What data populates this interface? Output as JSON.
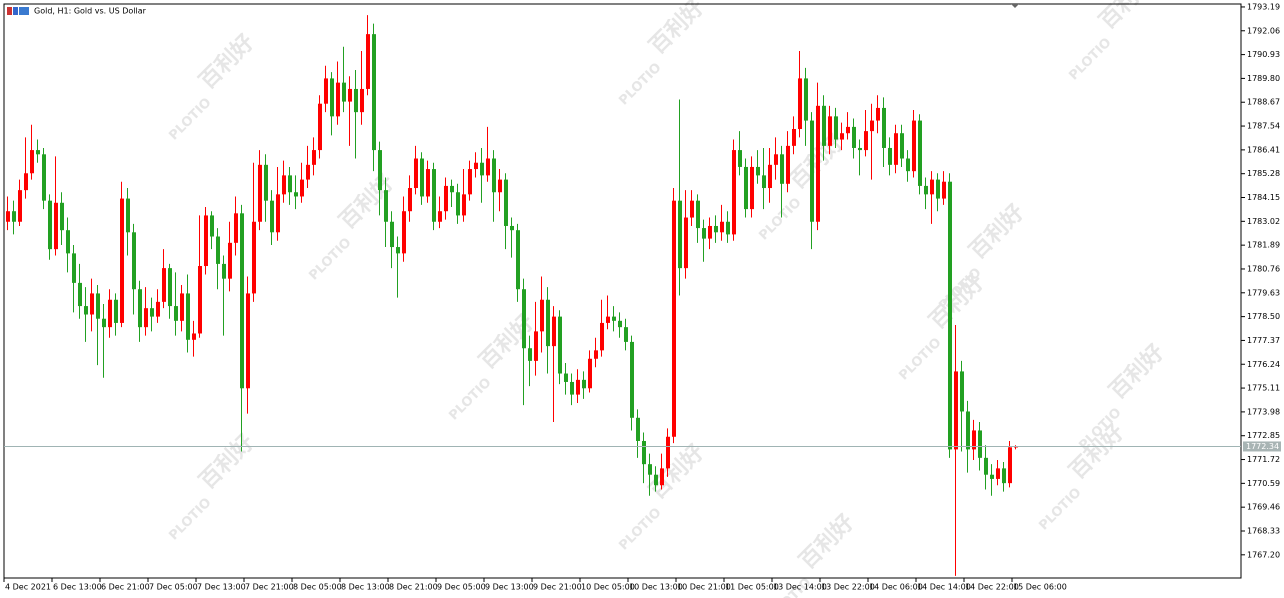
{
  "chart_data": {
    "type": "candlestick",
    "title": "Gold, H1:  Gold vs. US Dollar",
    "watermark": [
      "PLOTIO",
      "百利好"
    ],
    "up_color": "#ff0000",
    "down_color": "#22a022",
    "bid_line_color": "#a0b4b4",
    "grid": false,
    "ylim": [
      1766.1,
      1793.33
    ],
    "yticks": [
      1793.19,
      1792.06,
      1790.93,
      {
        "value": 1789.8,
        "label": "1789.80"
      },
      1788.67,
      1787.54,
      1786.41,
      1785.28,
      1784.15,
      1783.02,
      1781.89,
      1780.76,
      1779.63,
      {
        "value": 1778.5,
        "label": "1778.50"
      },
      1777.37,
      1776.24,
      1775.11,
      1773.98,
      1772.85,
      1771.72,
      1770.59,
      1769.46,
      1768.33,
      {
        "value": 1767.2,
        "label": "1767.20"
      }
    ],
    "categories": [
      "4 Dec 2021",
      null,
      null,
      null,
      null,
      null,
      null,
      null,
      "6 Dec 13:00",
      null,
      null,
      null,
      null,
      null,
      null,
      null,
      "6 Dec 21:00",
      null,
      null,
      null,
      null,
      null,
      null,
      null,
      "7 Dec 05:00",
      null,
      null,
      null,
      null,
      null,
      null,
      null,
      "7 Dec 13:00",
      null,
      null,
      null,
      null,
      null,
      null,
      null,
      "7 Dec 21:00",
      null,
      null,
      null,
      null,
      null,
      null,
      null,
      "8 Dec 05:00",
      null,
      null,
      null,
      null,
      null,
      null,
      null,
      "8 Dec 13:00",
      null,
      null,
      null,
      null,
      null,
      null,
      null,
      "8 Dec 21:00",
      null,
      null,
      null,
      null,
      null,
      null,
      null,
      "9 Dec 05:00",
      null,
      null,
      null,
      null,
      null,
      null,
      null,
      "9 Dec 13:00",
      null,
      null,
      null,
      null,
      null,
      null,
      null,
      "9 Dec 21:00",
      null,
      null,
      null,
      null,
      null,
      null,
      null,
      "10 Dec 05:00",
      null,
      null,
      null,
      null,
      null,
      null,
      null,
      "10 Dec 13:00",
      null,
      null,
      null,
      null,
      null,
      null,
      null,
      "10 Dec 21:00",
      null,
      null,
      null,
      null,
      null,
      null,
      null,
      "11 Dec 05:00",
      null,
      null,
      null,
      null,
      null,
      null,
      null,
      "13 Dec 14:00",
      null,
      null,
      null,
      null,
      null,
      null,
      null,
      "13 Dec 22:00",
      null,
      null,
      null,
      null,
      null,
      null,
      null,
      "14 Dec 06:00",
      null,
      null,
      null,
      null,
      null,
      null,
      null,
      "14 Dec 14:00",
      null,
      null,
      null,
      null,
      null,
      null,
      null,
      "14 Dec 22:00",
      null,
      null,
      null,
      null,
      null,
      null,
      null,
      "15 Dec 06:00"
    ],
    "open": [
      1783.0,
      1783.5,
      1783.0,
      1784.5,
      1785.3,
      1786.4,
      1786.2,
      1784.0,
      1781.7,
      1783.9,
      1782.6,
      1781.5,
      1780.1,
      1779.0,
      1778.6,
      1779.6,
      1778.4,
      1778.0,
      1779.3,
      1778.2,
      1784.1,
      1782.5,
      1779.8,
      1778.0,
      1778.9,
      1778.5,
      1779.2,
      1780.8,
      1779.0,
      1778.3,
      1779.6,
      1777.4,
      1777.7,
      1780.9,
      1783.3,
      1782.3,
      1781.0,
      1780.3,
      1782.0,
      1783.4,
      1775.1,
      1779.6,
      1783.0,
      1785.7,
      1784.0,
      1782.5,
      1784.3,
      1785.2,
      1784.4,
      1784.2,
      1785.0,
      1785.7,
      1786.4,
      1788.6,
      1789.8,
      1788.0,
      1789.6,
      1788.7,
      1789.3,
      1788.2,
      1789.3,
      1791.9,
      1786.4,
      1784.5,
      1783.0,
      1781.8,
      1781.5,
      1783.5,
      1784.6,
      1786.0,
      1784.2,
      1785.5,
      1783.0,
      1783.5,
      1784.7,
      1784.4,
      1783.3,
      1784.3,
      1785.5,
      1785.8,
      1785.2,
      1786.0,
      1784.4,
      1785.0,
      1782.8,
      1782.6,
      1779.8,
      1777.0,
      1776.4,
      1777.8,
      1779.3,
      1777.1,
      1778.5,
      1775.8,
      1775.4,
      1774.8,
      1775.5,
      1775.1,
      1776.5,
      1776.9,
      1778.2,
      1778.5,
      1778.3,
      1778.0,
      1777.3,
      1773.7,
      1772.6,
      1771.5,
      1771.0,
      1770.5,
      1771.3,
      1772.8,
      1784.0,
      1780.8,
      1783.2,
      1784.0,
      1782.7,
      1782.2,
      1782.8,
      1782.5,
      1783.0,
      1782.4,
      1786.4,
      1785.6,
      1783.6,
      1785.6,
      1785.2,
      1784.6,
      1785.7,
      1786.2,
      1784.8,
      1786.6,
      1787.4,
      1789.8,
      1787.8,
      1783.0,
      1788.5,
      1786.6,
      1788.0,
      1786.9,
      1787.2,
      1787.5,
      1786.5,
      1786.4,
      1787.3,
      1787.8,
      1788.4,
      1786.5,
      1785.7,
      1787.2,
      1786.0,
      1785.4,
      1787.8,
      1784.7,
      1784.3,
      1785.0,
      1784.1,
      1784.9,
      1772.2,
      1775.9,
      1774.0,
      1772.2,
      1773.1,
      1771.8,
      1771.0,
      1770.8,
      1771.3,
      1770.6,
      1772.3
    ],
    "high": [
      1784.2,
      1784.0,
      1785.0,
      1787.0,
      1787.6,
      1786.9,
      1786.5,
      1784.3,
      1786.1,
      1784.4,
      1783.2,
      1781.9,
      1781.0,
      1779.9,
      1780.3,
      1780.0,
      1779.1,
      1779.8,
      1779.6,
      1784.9,
      1784.6,
      1782.9,
      1780.2,
      1779.9,
      1779.4,
      1779.8,
      1781.7,
      1781.0,
      1780.6,
      1780.0,
      1780.5,
      1778.3,
      1783.3,
      1783.7,
      1783.5,
      1782.7,
      1781.4,
      1783.0,
      1784.2,
      1783.8,
      1780.4,
      1785.8,
      1786.4,
      1786.2,
      1784.5,
      1785.6,
      1785.9,
      1785.6,
      1785.2,
      1785.8,
      1786.6,
      1787.0,
      1789.0,
      1790.4,
      1790.1,
      1790.6,
      1791.3,
      1789.9,
      1790.2,
      1791.1,
      1792.8,
      1792.4,
      1786.8,
      1785.1,
      1783.5,
      1782.3,
      1784.2,
      1785.2,
      1786.6,
      1786.3,
      1785.9,
      1785.8,
      1784.2,
      1785.1,
      1785.0,
      1784.8,
      1785.5,
      1785.9,
      1786.3,
      1786.5,
      1787.5,
      1786.4,
      1785.5,
      1785.3,
      1783.2,
      1782.9,
      1780.3,
      1777.6,
      1779.2,
      1780.4,
      1779.9,
      1779.0,
      1778.8,
      1776.3,
      1775.8,
      1776.0,
      1775.9,
      1776.9,
      1777.5,
      1779.3,
      1779.5,
      1779.0,
      1778.7,
      1778.4,
      1777.6,
      1774.1,
      1773.0,
      1772.0,
      1771.4,
      1772.0,
      1773.2,
      1784.6,
      1788.8,
      1784.5,
      1784.5,
      1784.3,
      1783.1,
      1783.2,
      1783.3,
      1783.8,
      1783.5,
      1786.9,
      1787.3,
      1786.0,
      1786.1,
      1786.4,
      1786.5,
      1786.5,
      1787.0,
      1786.6,
      1787.3,
      1788.0,
      1791.1,
      1790.3,
      1788.2,
      1789.6,
      1789.0,
      1788.5,
      1788.4,
      1787.7,
      1788.2,
      1787.9,
      1786.9,
      1788.3,
      1788.6,
      1789.0,
      1788.9,
      1787.0,
      1787.6,
      1787.6,
      1786.4,
      1788.3,
      1788.1,
      1785.1,
      1785.4,
      1785.3,
      1785.4,
      1785.3,
      1778.1,
      1776.4,
      1774.5,
      1773.6,
      1773.5,
      1772.4,
      1771.5,
      1771.7,
      1771.6,
      1772.6,
      1772.4
    ],
    "low": [
      1782.6,
      1782.4,
      1782.8,
      1784.1,
      1785.0,
      1785.8,
      1783.6,
      1781.2,
      1781.4,
      1781.9,
      1780.6,
      1778.7,
      1778.4,
      1777.3,
      1777.8,
      1776.2,
      1775.6,
      1777.5,
      1777.6,
      1778.0,
      1781.4,
      1778.6,
      1777.3,
      1777.6,
      1777.8,
      1778.2,
      1778.9,
      1778.4,
      1777.6,
      1777.8,
      1776.8,
      1776.6,
      1777.5,
      1780.5,
      1781.7,
      1779.8,
      1777.6,
      1779.7,
      1781.4,
      1772.1,
      1773.9,
      1779.2,
      1782.6,
      1783.0,
      1781.9,
      1782.1,
      1783.9,
      1783.8,
      1783.6,
      1783.9,
      1784.6,
      1785.2,
      1786.0,
      1788.2,
      1787.1,
      1787.6,
      1788.2,
      1786.6,
      1786.0,
      1787.6,
      1789.0,
      1785.4,
      1783.3,
      1781.8,
      1780.8,
      1779.4,
      1781.1,
      1783.0,
      1784.3,
      1783.8,
      1783.9,
      1782.6,
      1782.7,
      1783.1,
      1783.7,
      1782.9,
      1783.0,
      1784.0,
      1785.1,
      1783.9,
      1784.9,
      1783.0,
      1783.5,
      1781.7,
      1781.3,
      1779.2,
      1774.3,
      1775.2,
      1775.7,
      1776.8,
      1775.8,
      1773.5,
      1775.3,
      1774.8,
      1774.3,
      1774.4,
      1774.6,
      1774.9,
      1776.1,
      1776.6,
      1777.9,
      1777.8,
      1777.5,
      1776.9,
      1773.1,
      1771.8,
      1770.6,
      1770.0,
      1770.2,
      1770.3,
      1770.9,
      1772.5,
      1779.5,
      1780.3,
      1782.8,
      1782.0,
      1781.1,
      1781.7,
      1782.0,
      1782.1,
      1782.0,
      1782.1,
      1785.2,
      1783.2,
      1783.2,
      1784.8,
      1783.6,
      1783.9,
      1785.0,
      1783.2,
      1784.4,
      1786.2,
      1787.0,
      1786.6,
      1781.7,
      1782.6,
      1785.9,
      1786.2,
      1786.5,
      1786.4,
      1786.9,
      1786.0,
      1785.2,
      1786.1,
      1785.0,
      1787.2,
      1785.6,
      1785.2,
      1785.3,
      1785.6,
      1784.9,
      1785.1,
      1784.3,
      1783.6,
      1782.9,
      1783.5,
      1783.8,
      1771.8,
      1766.2,
      1772.1,
      1771.1,
      1771.7,
      1771.2,
      1770.3,
      1770.0,
      1770.5,
      1770.2,
      1770.4,
      1772.2
    ],
    "close": [
      1783.5,
      1783.0,
      1784.5,
      1785.3,
      1786.4,
      1786.2,
      1784.0,
      1781.7,
      1783.9,
      1782.6,
      1781.5,
      1780.1,
      1779.0,
      1778.6,
      1779.6,
      1778.4,
      1778.0,
      1779.3,
      1778.2,
      1784.1,
      1782.5,
      1779.8,
      1778.0,
      1778.9,
      1778.5,
      1779.2,
      1780.8,
      1779.0,
      1778.3,
      1779.6,
      1777.4,
      1777.7,
      1780.9,
      1783.3,
      1782.3,
      1781.0,
      1780.3,
      1782.0,
      1783.4,
      1775.1,
      1779.6,
      1783.0,
      1785.7,
      1784.0,
      1782.5,
      1784.3,
      1785.2,
      1784.4,
      1784.2,
      1785.0,
      1785.7,
      1786.4,
      1788.6,
      1789.8,
      1788.0,
      1789.6,
      1788.7,
      1789.3,
      1788.2,
      1789.3,
      1791.9,
      1786.4,
      1784.5,
      1783.0,
      1781.8,
      1781.5,
      1783.5,
      1784.6,
      1786.0,
      1784.2,
      1785.5,
      1783.0,
      1783.5,
      1784.7,
      1784.4,
      1783.3,
      1784.3,
      1785.5,
      1785.8,
      1785.2,
      1786.0,
      1784.4,
      1785.0,
      1782.8,
      1782.6,
      1779.8,
      1777.0,
      1776.4,
      1777.8,
      1779.3,
      1777.1,
      1778.5,
      1775.8,
      1775.4,
      1774.8,
      1775.5,
      1775.1,
      1776.5,
      1776.9,
      1778.2,
      1778.5,
      1778.3,
      1778.0,
      1777.3,
      1773.7,
      1772.6,
      1771.5,
      1771.0,
      1770.5,
      1771.3,
      1772.8,
      1784.0,
      1780.8,
      1783.2,
      1784.0,
      1782.7,
      1782.2,
      1782.8,
      1782.5,
      1783.0,
      1782.4,
      1786.4,
      1785.6,
      1783.6,
      1785.6,
      1785.2,
      1784.6,
      1785.7,
      1786.2,
      1784.8,
      1786.6,
      1787.4,
      1789.8,
      1787.8,
      1783.0,
      1788.5,
      1786.6,
      1788.0,
      1786.9,
      1787.2,
      1787.5,
      1786.5,
      1786.4,
      1787.3,
      1787.8,
      1788.4,
      1786.5,
      1785.7,
      1787.2,
      1786.0,
      1785.4,
      1787.8,
      1784.7,
      1784.3,
      1785.0,
      1784.1,
      1784.9,
      1772.2,
      1775.9,
      1774.0,
      1772.2,
      1773.1,
      1771.8,
      1771.0,
      1770.8,
      1771.3,
      1770.6,
      1772.3,
      1772.34
    ]
  }
}
